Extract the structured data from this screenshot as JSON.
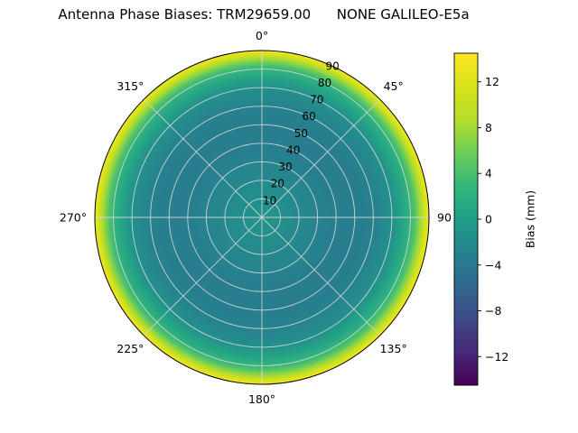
{
  "chart_data": {
    "type": "heatmap",
    "projection": "polar",
    "title": "Antenna Phase Biases: TRM29659.00      NONE GALILEO-E5a",
    "theta_tick_labels": [
      "0°",
      "45°",
      "90",
      "135°",
      "180°",
      "225°",
      "270°",
      "315°"
    ],
    "theta_zero_location": "top",
    "theta_direction": "clockwise",
    "r_axis": {
      "min": 0,
      "max": 90,
      "ticks": [
        10,
        20,
        30,
        40,
        50,
        60,
        70,
        80,
        90
      ],
      "label_angle_deg": 25
    },
    "radial_profile": {
      "zenith_deg": [
        0,
        10,
        20,
        30,
        40,
        50,
        60,
        70,
        75,
        80,
        83,
        85,
        87,
        89,
        90
      ],
      "bias_mm": [
        -1.0,
        -1.5,
        -2.2,
        -2.8,
        -3.5,
        -3.5,
        -3.0,
        -1.5,
        0.5,
        2.5,
        5.0,
        7.5,
        10.0,
        12.5,
        14.0
      ]
    },
    "colorbar": {
      "label": "Bias (mm)",
      "ticks": [
        12,
        8,
        4,
        0,
        -4,
        -8,
        -12
      ],
      "tick_labels": [
        "12",
        "8",
        "4",
        "0",
        "−4",
        "−8",
        "−12"
      ],
      "vmin": -14.5,
      "vmax": 14.5,
      "colormap": "viridis",
      "colormap_anchors": [
        [
          0.0,
          "#440154"
        ],
        [
          0.1,
          "#482878"
        ],
        [
          0.2,
          "#3e4989"
        ],
        [
          0.3,
          "#31688e"
        ],
        [
          0.4,
          "#26828e"
        ],
        [
          0.5,
          "#1f9e89"
        ],
        [
          0.6,
          "#35b779"
        ],
        [
          0.7,
          "#6dcd59"
        ],
        [
          0.8,
          "#b4de2c"
        ],
        [
          0.9,
          "#d8e219"
        ],
        [
          1.0,
          "#fde725"
        ]
      ]
    },
    "grid": {
      "visible": true,
      "color": "#d9d9d9"
    }
  }
}
